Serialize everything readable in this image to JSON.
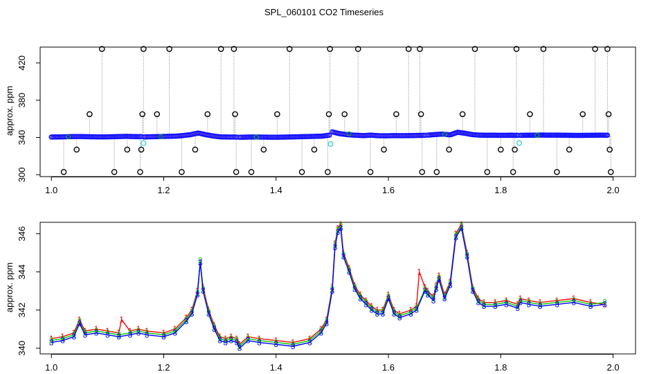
{
  "title": "SPL_060101  CO2 Timeseries",
  "chart_data": [
    {
      "type": "scatter",
      "ylabel": "approx. ppm",
      "xlim": [
        0.98,
        2.04
      ],
      "ylim": [
        298,
        437
      ],
      "x_ticks": [
        "1.0",
        "1.2",
        "1.4",
        "1.6",
        "1.8",
        "2.0"
      ],
      "y_ticks": [
        "300",
        "340",
        "380",
        "420"
      ],
      "baseline_series": [
        {
          "x0": 1.0,
          "x1": 1.16,
          "y": [
            340.5,
            340.6,
            340.8,
            341.0,
            341.0,
            340.8,
            340.7,
            340.6,
            340.8,
            341.0,
            341.2,
            341.0,
            340.9
          ]
        },
        {
          "x0": 1.165,
          "x1": 1.33,
          "y": [
            340.6,
            340.8,
            341.0,
            341.2,
            341.4,
            342.0,
            343.0,
            344.8,
            343.0,
            341.5,
            340.6,
            340.5,
            340.4
          ]
        },
        {
          "x0": 1.335,
          "x1": 1.495,
          "y": [
            340.2,
            340.4,
            340.5,
            340.4,
            340.3,
            340.3,
            340.4,
            340.6,
            340.8,
            341.0,
            341.2,
            341.4,
            342.5
          ]
        },
        {
          "x0": 1.5,
          "x1": 1.665,
          "y": [
            346.0,
            344.0,
            343.0,
            342.4,
            342.0,
            342.5,
            341.9,
            341.8,
            342.0,
            341.9,
            342.0,
            342.2,
            342.3
          ]
        },
        {
          "x0": 1.67,
          "x1": 1.83,
          "y": [
            342.5,
            343.2,
            343.6,
            342.8,
            345.6,
            344.5,
            343.0,
            342.5,
            342.4,
            342.4,
            342.3,
            342.4,
            342.3
          ]
        },
        {
          "x0": 1.835,
          "x1": 1.99,
          "y": [
            342.3,
            342.4,
            342.5,
            342.6,
            342.5,
            342.5,
            342.4,
            342.3,
            342.2,
            342.3,
            342.4,
            342.5,
            342.4
          ]
        }
      ],
      "outliers": [
        {
          "x": 1.022,
          "y": 303
        },
        {
          "x": 1.045,
          "y": 327
        },
        {
          "x": 1.068,
          "y": 365
        },
        {
          "x": 1.09,
          "y": 435
        },
        {
          "x": 1.112,
          "y": 303
        },
        {
          "x": 1.135,
          "y": 327
        },
        {
          "x": 1.158,
          "y": 303
        },
        {
          "x": 1.16,
          "y": 327
        },
        {
          "x": 1.162,
          "y": 365
        },
        {
          "x": 1.164,
          "y": 435
        },
        {
          "x": 1.188,
          "y": 365
        },
        {
          "x": 1.21,
          "y": 435
        },
        {
          "x": 1.232,
          "y": 303
        },
        {
          "x": 1.256,
          "y": 327
        },
        {
          "x": 1.278,
          "y": 365
        },
        {
          "x": 1.302,
          "y": 435
        },
        {
          "x": 1.325,
          "y": 435
        },
        {
          "x": 1.327,
          "y": 365
        },
        {
          "x": 1.329,
          "y": 303
        },
        {
          "x": 1.356,
          "y": 303
        },
        {
          "x": 1.378,
          "y": 327
        },
        {
          "x": 1.402,
          "y": 365
        },
        {
          "x": 1.424,
          "y": 435
        },
        {
          "x": 1.446,
          "y": 303
        },
        {
          "x": 1.468,
          "y": 327
        },
        {
          "x": 1.492,
          "y": 303
        },
        {
          "x": 1.494,
          "y": 365
        },
        {
          "x": 1.496,
          "y": 435
        },
        {
          "x": 1.522,
          "y": 365
        },
        {
          "x": 1.546,
          "y": 435
        },
        {
          "x": 1.568,
          "y": 303
        },
        {
          "x": 1.592,
          "y": 327
        },
        {
          "x": 1.614,
          "y": 365
        },
        {
          "x": 1.636,
          "y": 435
        },
        {
          "x": 1.656,
          "y": 435
        },
        {
          "x": 1.658,
          "y": 365
        },
        {
          "x": 1.66,
          "y": 303
        },
        {
          "x": 1.686,
          "y": 303
        },
        {
          "x": 1.708,
          "y": 327
        },
        {
          "x": 1.732,
          "y": 365
        },
        {
          "x": 1.754,
          "y": 435
        },
        {
          "x": 1.776,
          "y": 303
        },
        {
          "x": 1.8,
          "y": 327
        },
        {
          "x": 1.822,
          "y": 303
        },
        {
          "x": 1.825,
          "y": 327
        },
        {
          "x": 1.828,
          "y": 435
        },
        {
          "x": 1.852,
          "y": 365
        },
        {
          "x": 1.876,
          "y": 435
        },
        {
          "x": 1.9,
          "y": 303
        },
        {
          "x": 1.922,
          "y": 327
        },
        {
          "x": 1.946,
          "y": 365
        },
        {
          "x": 1.968,
          "y": 435
        },
        {
          "x": 1.99,
          "y": 435
        },
        {
          "x": 1.992,
          "y": 365
        },
        {
          "x": 1.994,
          "y": 327
        },
        {
          "x": 1.996,
          "y": 303
        }
      ],
      "cyan_points": [
        {
          "x": 1.164,
          "y": 334
        },
        {
          "x": 1.497,
          "y": 333
        },
        {
          "x": 1.833,
          "y": 334
        }
      ]
    },
    {
      "type": "line",
      "ylabel": "approx. ppm",
      "xlim": [
        0.98,
        2.04
      ],
      "ylim": [
        339.7,
        346.6
      ],
      "x_ticks": [
        "1.0",
        "1.2",
        "1.4",
        "1.6",
        "1.8",
        "2.0"
      ],
      "y_ticks": [
        "340",
        "342",
        "344",
        "346"
      ],
      "series": [
        {
          "marker": "1",
          "color": "#ff0000",
          "x": [
            1.0,
            1.02,
            1.04,
            1.05,
            1.06,
            1.08,
            1.1,
            1.12,
            1.125,
            1.14,
            1.155,
            1.17,
            1.2,
            1.22,
            1.24,
            1.25,
            1.26,
            1.265,
            1.27,
            1.28,
            1.29,
            1.3,
            1.31,
            1.32,
            1.33,
            1.335,
            1.35,
            1.37,
            1.4,
            1.43,
            1.46,
            1.48,
            1.49,
            1.5,
            1.505,
            1.51,
            1.515,
            1.52,
            1.53,
            1.54,
            1.55,
            1.56,
            1.57,
            1.58,
            1.59,
            1.6,
            1.61,
            1.62,
            1.64,
            1.65,
            1.655,
            1.665,
            1.67,
            1.68,
            1.685,
            1.69,
            1.7,
            1.71,
            1.72,
            1.73,
            1.74,
            1.75,
            1.76,
            1.77,
            1.79,
            1.81,
            1.83,
            1.835,
            1.85,
            1.87,
            1.9,
            1.93,
            1.96,
            1.985
          ],
          "y": [
            340.5,
            340.6,
            340.8,
            341.5,
            340.9,
            341.0,
            340.9,
            340.8,
            341.5,
            340.9,
            341.0,
            340.9,
            340.8,
            341.0,
            341.6,
            342.0,
            343.0,
            344.5,
            343.2,
            342.0,
            341.2,
            340.6,
            340.5,
            340.6,
            340.5,
            340.2,
            340.6,
            340.5,
            340.4,
            340.3,
            340.5,
            341.0,
            341.5,
            343.2,
            345.5,
            346.3,
            346.5,
            345.0,
            344.2,
            343.3,
            342.8,
            342.5,
            342.2,
            342.0,
            342.0,
            342.8,
            342.0,
            341.8,
            342.0,
            342.2,
            344.0,
            343.2,
            343.0,
            342.7,
            343.3,
            343.8,
            342.8,
            343.5,
            346.0,
            346.5,
            345.0,
            343.2,
            342.6,
            342.4,
            342.4,
            342.5,
            342.3,
            342.6,
            342.5,
            342.4,
            342.5,
            342.6,
            342.4,
            342.3
          ]
        },
        {
          "marker": "2",
          "color": "#00cc00",
          "x": [
            1.0,
            1.02,
            1.04,
            1.05,
            1.06,
            1.08,
            1.1,
            1.12,
            1.14,
            1.155,
            1.17,
            1.2,
            1.22,
            1.24,
            1.25,
            1.26,
            1.265,
            1.27,
            1.28,
            1.29,
            1.3,
            1.31,
            1.32,
            1.33,
            1.335,
            1.35,
            1.37,
            1.4,
            1.43,
            1.46,
            1.48,
            1.49,
            1.5,
            1.505,
            1.51,
            1.515,
            1.52,
            1.53,
            1.54,
            1.55,
            1.56,
            1.57,
            1.58,
            1.59,
            1.6,
            1.61,
            1.62,
            1.64,
            1.65,
            1.665,
            1.67,
            1.68,
            1.685,
            1.69,
            1.7,
            1.71,
            1.72,
            1.73,
            1.74,
            1.75,
            1.76,
            1.77,
            1.79,
            1.81,
            1.83,
            1.835,
            1.85,
            1.87,
            1.9,
            1.93,
            1.96,
            1.985
          ],
          "y": [
            340.4,
            340.5,
            340.7,
            341.4,
            340.8,
            340.9,
            340.8,
            340.7,
            340.8,
            340.9,
            340.8,
            340.7,
            340.9,
            341.5,
            341.9,
            342.9,
            344.6,
            343.1,
            341.9,
            341.1,
            340.5,
            340.4,
            340.5,
            340.4,
            340.1,
            340.5,
            340.4,
            340.3,
            340.2,
            340.4,
            340.9,
            341.4,
            343.1,
            345.4,
            346.2,
            346.4,
            344.9,
            344.1,
            343.2,
            342.7,
            342.4,
            342.1,
            341.9,
            341.9,
            342.7,
            341.9,
            341.7,
            341.9,
            342.1,
            343.1,
            342.9,
            342.6,
            343.2,
            343.7,
            342.7,
            343.4,
            345.9,
            346.4,
            344.9,
            343.1,
            342.5,
            342.3,
            342.3,
            342.4,
            342.2,
            342.5,
            342.4,
            342.3,
            342.4,
            342.5,
            342.3,
            342.4
          ]
        },
        {
          "marker": "3",
          "color": "#0000ff",
          "x": [
            1.0,
            1.02,
            1.04,
            1.05,
            1.06,
            1.08,
            1.1,
            1.12,
            1.14,
            1.155,
            1.17,
            1.2,
            1.22,
            1.24,
            1.25,
            1.26,
            1.265,
            1.27,
            1.28,
            1.29,
            1.3,
            1.31,
            1.32,
            1.33,
            1.335,
            1.35,
            1.37,
            1.4,
            1.43,
            1.46,
            1.48,
            1.49,
            1.5,
            1.505,
            1.51,
            1.515,
            1.52,
            1.53,
            1.54,
            1.55,
            1.56,
            1.57,
            1.58,
            1.59,
            1.6,
            1.61,
            1.62,
            1.64,
            1.65,
            1.665,
            1.67,
            1.68,
            1.685,
            1.69,
            1.7,
            1.71,
            1.72,
            1.73,
            1.74,
            1.75,
            1.76,
            1.77,
            1.79,
            1.81,
            1.83,
            1.835,
            1.85,
            1.87,
            1.9,
            1.93,
            1.96,
            1.985
          ],
          "y": [
            340.3,
            340.4,
            340.6,
            341.3,
            340.7,
            340.8,
            340.7,
            340.6,
            340.7,
            340.8,
            340.7,
            340.6,
            340.8,
            341.4,
            341.8,
            342.8,
            344.5,
            343.0,
            341.8,
            341.0,
            340.4,
            340.3,
            340.4,
            340.3,
            340.0,
            340.4,
            340.3,
            340.2,
            340.1,
            340.3,
            340.8,
            341.3,
            343.0,
            345.3,
            346.1,
            346.3,
            344.8,
            344.0,
            343.1,
            342.6,
            342.3,
            342.0,
            341.8,
            341.8,
            342.6,
            341.8,
            341.6,
            341.8,
            342.0,
            343.0,
            342.8,
            342.5,
            343.1,
            343.6,
            342.6,
            343.3,
            345.8,
            346.3,
            344.8,
            343.0,
            342.4,
            342.2,
            342.2,
            342.3,
            342.1,
            342.4,
            342.3,
            342.2,
            342.3,
            342.4,
            342.2,
            342.3
          ]
        }
      ]
    }
  ]
}
